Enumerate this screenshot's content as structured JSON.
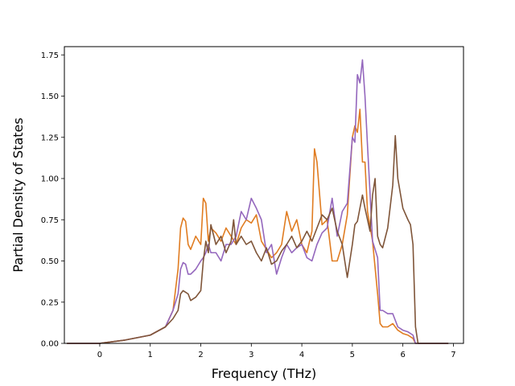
{
  "chart_data": {
    "type": "line",
    "title": "",
    "xlabel": "Frequency (THz)",
    "ylabel": "Partial Density of States",
    "xlim": [
      -0.7,
      7.2
    ],
    "ylim": [
      0.0,
      1.8
    ],
    "x_ticks": [
      0,
      1,
      2,
      3,
      4,
      5,
      6,
      7
    ],
    "x_tick_labels": [
      "0",
      "1",
      "2",
      "3",
      "4",
      "5",
      "6",
      "7"
    ],
    "y_ticks": [
      0.0,
      0.25,
      0.5,
      0.75,
      1.0,
      1.25,
      1.5,
      1.75
    ],
    "y_tick_labels": [
      "0.00",
      "0.25",
      "0.50",
      "0.75",
      "1.00",
      "1.25",
      "1.50",
      "1.75"
    ],
    "grid": false,
    "legend": "none",
    "series": [
      {
        "color": "#e07c21",
        "x": [
          -0.65,
          0.0,
          0.5,
          1.0,
          1.3,
          1.45,
          1.55,
          1.6,
          1.65,
          1.7,
          1.75,
          1.8,
          1.9,
          2.0,
          2.05,
          2.1,
          2.15,
          2.2,
          2.3,
          2.4,
          2.5,
          2.6,
          2.7,
          2.8,
          2.9,
          3.0,
          3.1,
          3.2,
          3.3,
          3.4,
          3.5,
          3.6,
          3.7,
          3.8,
          3.9,
          4.0,
          4.1,
          4.2,
          4.25,
          4.3,
          4.4,
          4.5,
          4.6,
          4.7,
          4.8,
          4.9,
          5.0,
          5.05,
          5.1,
          5.15,
          5.2,
          5.25,
          5.3,
          5.4,
          5.5,
          5.55,
          5.6,
          5.7,
          5.8,
          5.9,
          6.0,
          6.1,
          6.2,
          6.25,
          6.3,
          6.9
        ],
        "y": [
          0.0,
          0.0,
          0.02,
          0.05,
          0.1,
          0.2,
          0.45,
          0.7,
          0.76,
          0.74,
          0.6,
          0.57,
          0.65,
          0.6,
          0.88,
          0.85,
          0.62,
          0.7,
          0.67,
          0.62,
          0.7,
          0.65,
          0.6,
          0.7,
          0.75,
          0.73,
          0.78,
          0.62,
          0.57,
          0.52,
          0.55,
          0.6,
          0.8,
          0.68,
          0.75,
          0.6,
          0.55,
          0.68,
          1.18,
          1.1,
          0.72,
          0.75,
          0.5,
          0.5,
          0.6,
          0.78,
          1.25,
          1.32,
          1.28,
          1.42,
          1.1,
          1.1,
          0.8,
          0.62,
          0.3,
          0.12,
          0.1,
          0.1,
          0.12,
          0.08,
          0.06,
          0.05,
          0.03,
          0.0,
          0.0,
          0.0
        ]
      },
      {
        "color": "#9467bd",
        "x": [
          -0.65,
          0.0,
          0.5,
          1.0,
          1.3,
          1.45,
          1.55,
          1.6,
          1.65,
          1.7,
          1.75,
          1.8,
          1.9,
          2.0,
          2.05,
          2.1,
          2.15,
          2.2,
          2.3,
          2.4,
          2.5,
          2.6,
          2.7,
          2.8,
          2.9,
          3.0,
          3.1,
          3.2,
          3.3,
          3.4,
          3.5,
          3.6,
          3.7,
          3.8,
          3.9,
          4.0,
          4.1,
          4.2,
          4.3,
          4.4,
          4.5,
          4.6,
          4.7,
          4.8,
          4.9,
          5.0,
          5.05,
          5.1,
          5.15,
          5.2,
          5.25,
          5.3,
          5.4,
          5.5,
          5.55,
          5.6,
          5.7,
          5.8,
          5.9,
          6.0,
          6.1,
          6.2,
          6.25,
          6.3,
          6.9
        ],
        "y": [
          0.0,
          0.0,
          0.02,
          0.05,
          0.1,
          0.2,
          0.3,
          0.45,
          0.49,
          0.48,
          0.42,
          0.42,
          0.45,
          0.5,
          0.52,
          0.55,
          0.6,
          0.55,
          0.55,
          0.5,
          0.6,
          0.6,
          0.65,
          0.8,
          0.75,
          0.88,
          0.82,
          0.75,
          0.55,
          0.6,
          0.42,
          0.52,
          0.6,
          0.55,
          0.58,
          0.6,
          0.52,
          0.5,
          0.6,
          0.67,
          0.7,
          0.88,
          0.65,
          0.8,
          0.85,
          1.25,
          1.22,
          1.63,
          1.58,
          1.72,
          1.5,
          1.2,
          0.62,
          0.52,
          0.2,
          0.2,
          0.18,
          0.18,
          0.1,
          0.08,
          0.07,
          0.05,
          0.0,
          0.0,
          0.0
        ]
      },
      {
        "color": "#7f5539",
        "x": [
          -0.65,
          0.0,
          0.5,
          1.0,
          1.3,
          1.45,
          1.55,
          1.6,
          1.65,
          1.7,
          1.75,
          1.8,
          1.9,
          2.0,
          2.05,
          2.1,
          2.15,
          2.2,
          2.3,
          2.4,
          2.5,
          2.6,
          2.65,
          2.7,
          2.8,
          2.9,
          3.0,
          3.1,
          3.2,
          3.3,
          3.4,
          3.5,
          3.6,
          3.7,
          3.8,
          3.9,
          4.0,
          4.1,
          4.2,
          4.3,
          4.4,
          4.5,
          4.6,
          4.7,
          4.8,
          4.9,
          5.0,
          5.05,
          5.1,
          5.15,
          5.2,
          5.25,
          5.3,
          5.35,
          5.4,
          5.45,
          5.5,
          5.55,
          5.6,
          5.7,
          5.8,
          5.85,
          5.9,
          6.0,
          6.1,
          6.15,
          6.2,
          6.25,
          6.3,
          6.9
        ],
        "y": [
          0.0,
          0.0,
          0.02,
          0.05,
          0.1,
          0.15,
          0.2,
          0.3,
          0.32,
          0.31,
          0.3,
          0.26,
          0.28,
          0.32,
          0.5,
          0.62,
          0.55,
          0.72,
          0.6,
          0.65,
          0.55,
          0.62,
          0.75,
          0.6,
          0.65,
          0.6,
          0.62,
          0.55,
          0.5,
          0.58,
          0.48,
          0.5,
          0.56,
          0.6,
          0.65,
          0.58,
          0.62,
          0.68,
          0.62,
          0.7,
          0.78,
          0.75,
          0.82,
          0.68,
          0.6,
          0.4,
          0.6,
          0.72,
          0.74,
          0.82,
          0.9,
          0.82,
          0.75,
          0.68,
          0.9,
          1.0,
          0.65,
          0.6,
          0.58,
          0.7,
          0.96,
          1.26,
          1.0,
          0.82,
          0.75,
          0.72,
          0.6,
          0.1,
          0.0,
          0.0
        ]
      }
    ]
  }
}
